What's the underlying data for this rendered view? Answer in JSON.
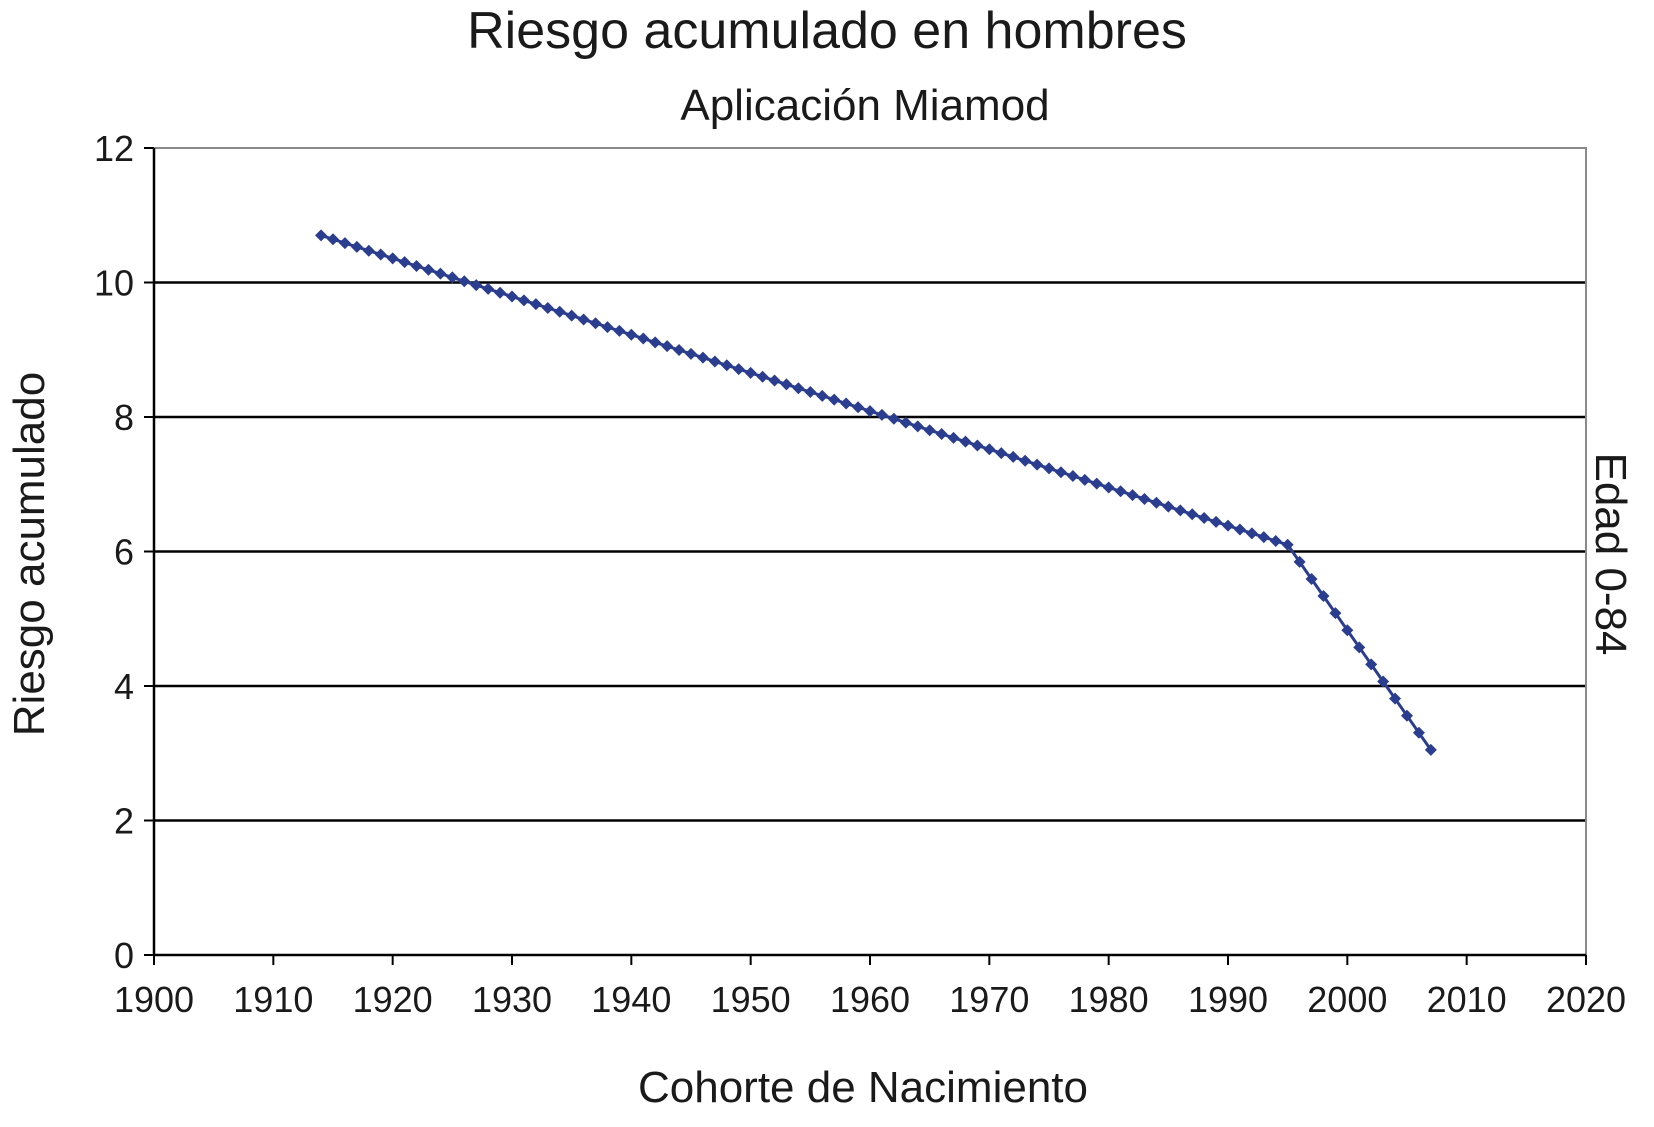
{
  "chart_data": {
    "type": "line",
    "title": "Riesgo acumulado en hombres",
    "subtitle": "Aplicación Miamod",
    "xlabel": "Cohorte de Nacimiento",
    "ylabel": "Riesgo acumulado",
    "side_label": "Edad 0-84",
    "xlim": [
      1900,
      2020
    ],
    "ylim": [
      0,
      12
    ],
    "x_ticks": [
      "1900",
      "1910",
      "1920",
      "1930",
      "1940",
      "1950",
      "1960",
      "1970",
      "1980",
      "1990",
      "2000",
      "2010",
      "2020"
    ],
    "y_ticks": [
      "0",
      "2",
      "4",
      "6",
      "8",
      "10",
      "12"
    ],
    "grid": "horizontal",
    "marker": "diamond",
    "series_color": "#2b3d8f",
    "series": [
      {
        "segments": [
          {
            "x_start": 1914,
            "x_end": 1995,
            "y_start": 10.7,
            "y_end": 6.1
          },
          {
            "x_start": 1995,
            "x_end": 2007,
            "y_start": 6.1,
            "y_end": 3.05
          }
        ]
      }
    ]
  }
}
